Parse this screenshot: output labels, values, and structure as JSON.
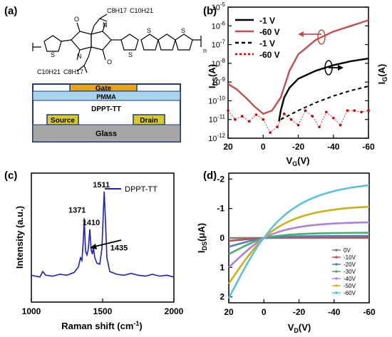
{
  "panels": {
    "a": {
      "label": "(a)",
      "molecule": {
        "side_chain_top": "C8H17",
        "side_chain_top_2": "C10H21",
        "side_chain_bottom": "C10H21",
        "side_chain_bottom_2": "C8H17",
        "atom_o": "O",
        "atom_n": "N",
        "atom_s": "S",
        "repeat": "n"
      },
      "device": {
        "gate": "Gate",
        "pmma": "PMMA",
        "semiconductor": "DPPT-TT",
        "source": "Source",
        "drain": "Drain",
        "substrate": "Glass"
      },
      "colors": {
        "gate": "#e8a317",
        "pmma": "#a9d4ee",
        "electrode": "#d9c92a",
        "glass": "#a6a6a6"
      }
    },
    "b": {
      "label": "(b)"
    },
    "c": {
      "label": "(c)"
    },
    "d": {
      "label": "(d)"
    }
  },
  "chart_data": [
    {
      "id": "b",
      "type": "line",
      "xlabel": "V_G(V)",
      "ylabel_left": "I_DS(A)",
      "ylabel_right": "I_G(A)",
      "xlim": [
        20,
        -60
      ],
      "x_reversed": true,
      "y_scale": "log",
      "ylim": [
        1e-12,
        1e-05
      ],
      "x_ticks": [
        20,
        0,
        -20,
        -40,
        -60
      ],
      "x_tick_labels": [
        "20",
        "0",
        "-20",
        "-40",
        "-60"
      ],
      "y_ticks": [
        -12,
        -11,
        -10,
        -9,
        -8,
        -7,
        -6,
        -5
      ],
      "y_tick_labels": [
        "10-12",
        "10-11",
        "10-10",
        "10-9",
        "10-8",
        "10-7",
        "10-6",
        "10-5"
      ],
      "legend": [
        "-1 V",
        "-60 V",
        "-1 V",
        "-60 V"
      ],
      "legend_position": "top-left",
      "series": [
        {
          "name": "-1 V",
          "style": "solid",
          "color": "#000000",
          "x": [
            -60,
            -50,
            -40,
            -30,
            -20,
            -15,
            -12,
            -10,
            -9
          ],
          "y": [
            1.8e-08,
            1.3e-08,
            8e-09,
            4e-09,
            1.5e-09,
            5e-10,
            1.5e-10,
            3e-11,
            8e-12
          ]
        },
        {
          "name": "-60 V",
          "style": "solid",
          "color": "#c0504d",
          "x": [
            20,
            15,
            10,
            5,
            0,
            -5,
            -10,
            -15,
            -20,
            -30,
            -40,
            -50,
            -60
          ],
          "y": [
            8e-10,
            4e-10,
            1.5e-10,
            5e-11,
            2e-11,
            3e-11,
            1.5e-10,
            4e-09,
            3e-08,
            1.8e-07,
            5e-07,
            1e-06,
            2e-06
          ]
        },
        {
          "name": "-1 V",
          "style": "dashed",
          "color": "#000000",
          "x": [
            -10,
            -20,
            -30,
            -40,
            -50,
            -60
          ],
          "y": [
            1e-11,
            3e-11,
            8e-11,
            1.8e-10,
            3.5e-10,
            6e-10
          ]
        },
        {
          "name": "-60 V",
          "style": "dotted-markers",
          "color": "#c00000",
          "x": [
            20,
            16,
            12,
            8,
            4,
            0,
            -4,
            -8,
            -12,
            -16,
            -20,
            -24,
            -28,
            -32,
            -36,
            -40,
            -44,
            -48,
            -52,
            -56,
            -60
          ],
          "y": [
            3e-11,
            1e-11,
            1.5e-11,
            8e-12,
            1.8e-11,
            1e-11,
            2e-12,
            4e-12,
            2e-11,
            1e-11,
            5e-12,
            3e-11,
            1.5e-11,
            4e-12,
            2.5e-11,
            1.2e-11,
            5e-12,
            3e-11,
            3e-11,
            2.5e-11,
            3e-11
          ]
        }
      ],
      "annotations": [
        "arrow to left axis (-60 V curve)",
        "arrow to right axis (gate current)"
      ]
    },
    {
      "id": "c",
      "type": "line",
      "xlabel": "Raman shift (cm-1)",
      "ylabel": "Intensity (a.u.)",
      "xlim": [
        1000,
        2000
      ],
      "ylim": [
        0,
        1
      ],
      "x_ticks": [
        1000,
        1500,
        2000
      ],
      "x_tick_labels": [
        "1000",
        "1500",
        "2000"
      ],
      "legend": [
        "DPPT-TT"
      ],
      "legend_position": "top-right",
      "peak_labels": [
        "1371",
        "1410",
        "1435",
        "1511"
      ],
      "peak_positions": [
        1371,
        1410,
        1435,
        1511
      ],
      "series": [
        {
          "name": "DPPT-TT",
          "color": "#1f1fbf",
          "x": [
            1000,
            1030,
            1060,
            1080,
            1100,
            1150,
            1200,
            1250,
            1300,
            1330,
            1345,
            1355,
            1365,
            1371,
            1380,
            1390,
            1400,
            1410,
            1420,
            1428,
            1435,
            1445,
            1460,
            1480,
            1495,
            1505,
            1511,
            1518,
            1530,
            1550,
            1600,
            1650,
            1700,
            1750,
            1800,
            1850,
            1900,
            1950,
            2000
          ],
          "y": [
            0.06,
            0.05,
            0.04,
            0.1,
            0.06,
            0.05,
            0.07,
            0.06,
            0.09,
            0.15,
            0.25,
            0.22,
            0.45,
            0.68,
            0.32,
            0.28,
            0.35,
            0.56,
            0.33,
            0.29,
            0.36,
            0.25,
            0.19,
            0.18,
            0.35,
            0.75,
            0.97,
            0.72,
            0.25,
            0.1,
            0.07,
            0.06,
            0.08,
            0.06,
            0.05,
            0.07,
            0.05,
            0.06,
            0.04
          ]
        }
      ]
    },
    {
      "id": "d",
      "type": "line",
      "xlabel": "V_D(V)",
      "ylabel": "I_DS(μA)",
      "xlim": [
        20,
        -60
      ],
      "x_reversed": true,
      "ylim": [
        2.2,
        -2.2
      ],
      "y_reversed": true,
      "x_ticks": [
        20,
        0,
        -20,
        -40,
        -60
      ],
      "x_tick_labels": [
        "20",
        "0",
        "-20",
        "-40",
        "-60"
      ],
      "y_ticks": [
        2,
        1,
        0,
        -1,
        -2
      ],
      "y_tick_labels": [
        "2",
        "1",
        "0",
        "-1",
        "-2"
      ],
      "legend_position": "bottom-right",
      "series": [
        {
          "name": "0V",
          "color": "#7f7f7f",
          "sat": 0.0,
          "low": 0.0
        },
        {
          "name": "-10V",
          "color": "#c0504d",
          "sat": -0.02,
          "low": 0.1
        },
        {
          "name": "-20V",
          "color": "#4f81bd",
          "sat": -0.07,
          "low": 0.3
        },
        {
          "name": "-30V",
          "color": "#4aac6e",
          "sat": -0.18,
          "low": 0.55
        },
        {
          "name": "-40V",
          "color": "#b27fd6",
          "sat": -0.55,
          "low": 1.0
        },
        {
          "name": "-50V",
          "color": "#c8b21c",
          "sat": -1.12,
          "low": 1.55
        },
        {
          "name": "-60V",
          "color": "#5bc0de",
          "sat": -1.93,
          "low": 2.05
        }
      ]
    }
  ]
}
